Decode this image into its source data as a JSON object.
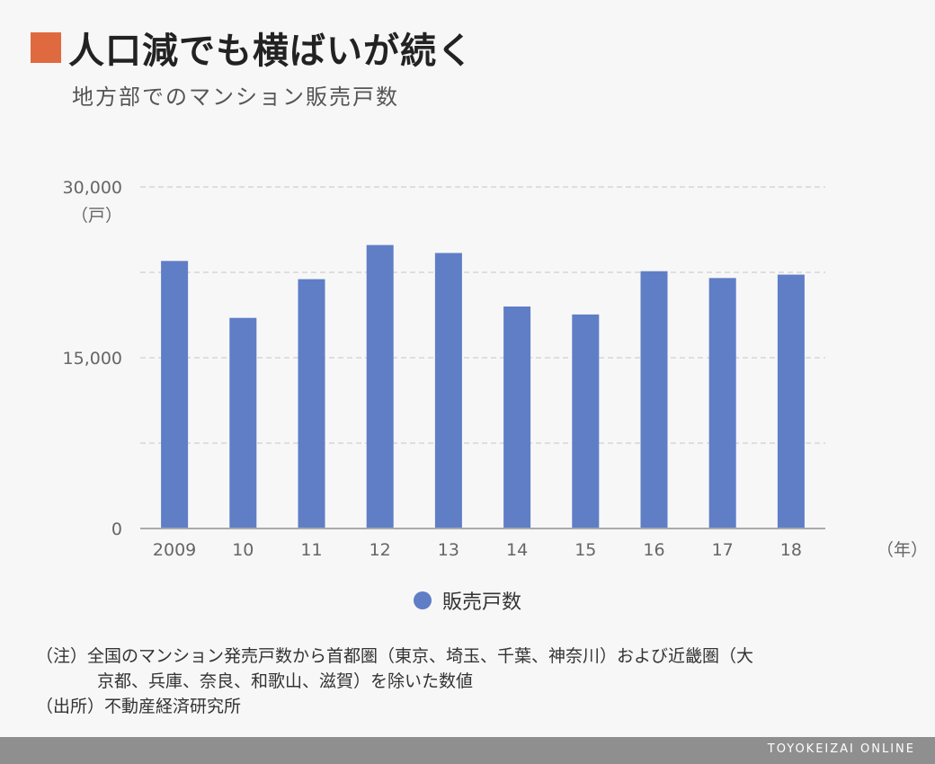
{
  "header": {
    "title": "人口減でも横ばいが続く",
    "subtitle": "地方部でのマンション販売戸数",
    "accent_color": "#e06a3f"
  },
  "chart_data": {
    "type": "bar",
    "categories": [
      "2009",
      "10",
      "11",
      "12",
      "13",
      "14",
      "15",
      "16",
      "17",
      "18"
    ],
    "series": [
      {
        "name": "販売戸数",
        "color": "#5f7ec6",
        "values": [
          23500,
          18500,
          21900,
          24900,
          24200,
          19500,
          18800,
          22600,
          22000,
          22300
        ]
      }
    ],
    "ylim": [
      0,
      30000
    ],
    "yticks": [
      {
        "value": 0,
        "label": "0"
      },
      {
        "value": 15000,
        "label": "15,000"
      },
      {
        "value": 30000,
        "label": "30,000"
      }
    ],
    "gridlines": [
      7500,
      15000,
      22500,
      30000
    ],
    "ylabel_unit": "（戸）",
    "xlabel_unit": "（年）",
    "legend_position": "bottom"
  },
  "notes": {
    "line1": "（注）全国のマンション発売戸数から首都圏（東京、埼玉、千葉、神奈川）および近畿圏（大",
    "line2": "京都、兵庫、奈良、和歌山、滋賀）を除いた数値",
    "line3": "（出所）不動産経済研究所"
  },
  "footer": {
    "brand": "TOYOKEIZAI ONLINE"
  }
}
